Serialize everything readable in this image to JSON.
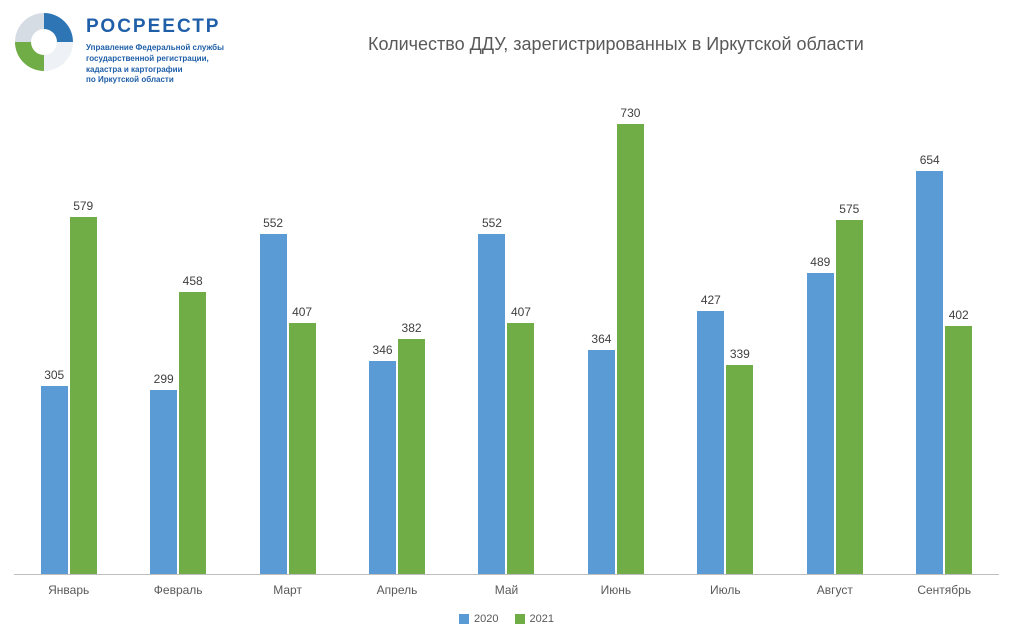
{
  "header": {
    "logo_title": "РОСРЕЕСТР",
    "logo_subtitle": "Управление Федеральной службы\nгосударственной регистрации,\nкадастра и картографии\nпо Иркутской области"
  },
  "chart_data": {
    "type": "bar",
    "title": "Количество ДДУ, зарегистрированных в Иркутской области",
    "categories": [
      "Январь",
      "Февраль",
      "Март",
      "Апрель",
      "Май",
      "Июнь",
      "Июль",
      "Август",
      "Сентябрь"
    ],
    "series": [
      {
        "name": "2020",
        "color": "#5b9bd5",
        "values": [
          305,
          299,
          552,
          346,
          552,
          364,
          427,
          489,
          654
        ]
      },
      {
        "name": "2021",
        "color": "#70ad47",
        "values": [
          579,
          458,
          407,
          382,
          407,
          730,
          339,
          575,
          402
        ]
      }
    ],
    "ylim": [
      0,
      760
    ],
    "grid": false,
    "legend_position": "bottom",
    "value_labels": true
  }
}
